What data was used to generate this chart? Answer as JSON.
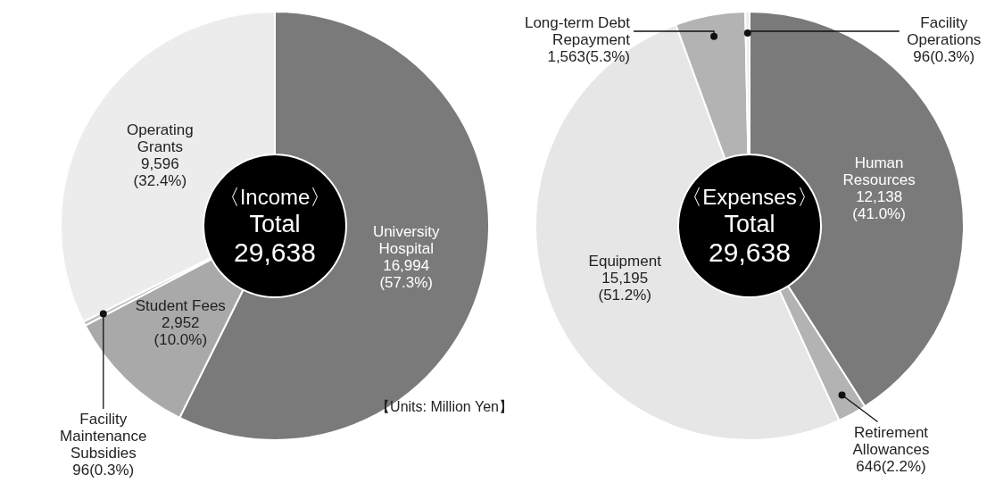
{
  "chart_data": [
    {
      "type": "donut",
      "title": "〈Income〉",
      "subtitle": "Total",
      "annotations": [
        "29,638",
        "【Units: Million Yen】"
      ],
      "categories": [
        "University\nHospital",
        "Student Fees",
        "Facility\nMaintenance\nSubsidies",
        "Operating\nGrants"
      ],
      "values": [
        16994,
        2952,
        96,
        9596
      ],
      "value_labels": [
        "16,994\n(57.3%)",
        "2,952\n(10.0%)",
        "96(0.3%)",
        "9,596\n(32.4%)"
      ],
      "colors": [
        "#7a7a7a",
        "#a9a9a9",
        "#bdbdbd",
        "#ececec"
      ],
      "legend": false
    },
    {
      "type": "donut",
      "title": "〈Expenses〉",
      "subtitle": "Total",
      "annotations": [
        "29,638"
      ],
      "categories": [
        "Human\nResources",
        "Retirement\nAllowances",
        "Equipment",
        "Long-term Debt\nRepayment",
        "Facility\nOperations"
      ],
      "values": [
        12138,
        646,
        15195,
        1563,
        96
      ],
      "value_labels": [
        "12,138\n(41.0%)",
        "646(2.2%)",
        "15,195\n(51.2%)",
        "1,563(5.3%)",
        "96(0.3%)"
      ],
      "colors": [
        "#7a7a7a",
        "#b3b3b3",
        "#e6e6e6",
        "#b3b3b3",
        "#ececec"
      ],
      "legend": false
    }
  ]
}
